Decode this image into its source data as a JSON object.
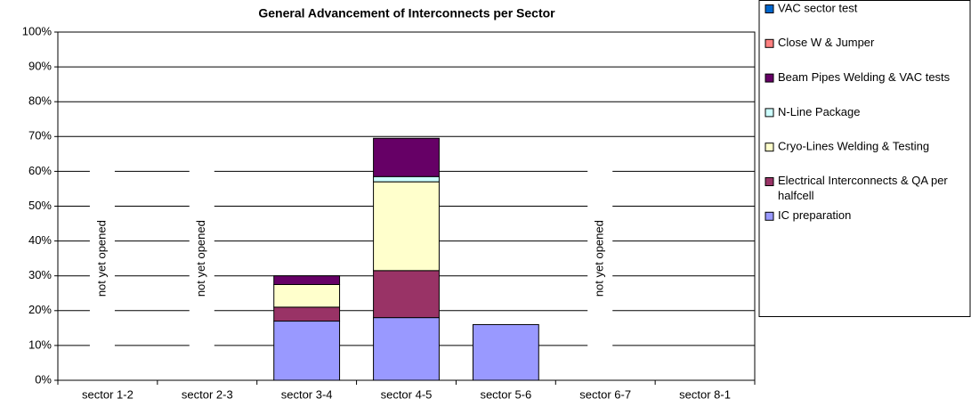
{
  "chart_data": {
    "type": "stacked_bar",
    "title": "General Advancement of Interconnects per Sector",
    "categories": [
      "sector 1-2",
      "sector 2-3",
      "sector 3-4",
      "sector 4-5",
      "sector 5-6",
      "sector 6-7",
      "sector 8-1"
    ],
    "series": [
      {
        "name": "IC preparation",
        "color": "#9999ff",
        "values": [
          0,
          0,
          17,
          18,
          16,
          0,
          0
        ]
      },
      {
        "name": "Electrical Interconnects & QA per halfcell",
        "color": "#993366",
        "values": [
          0,
          0,
          4,
          13.5,
          0,
          0,
          0
        ]
      },
      {
        "name": "Cryo-Lines Welding & Testing",
        "color": "#ffffcc",
        "values": [
          0,
          0,
          6.5,
          25.5,
          0,
          0,
          0
        ]
      },
      {
        "name": "N-Line Package",
        "color": "#ccffff",
        "values": [
          0,
          0,
          0,
          1.5,
          0,
          0,
          0
        ]
      },
      {
        "name": "Beam Pipes Welding & VAC tests",
        "color": "#660066",
        "values": [
          0,
          0,
          2.5,
          11,
          0,
          0,
          0
        ]
      },
      {
        "name": "Close W & Jumper",
        "color": "#ff8080",
        "values": [
          0,
          0,
          0,
          0,
          0,
          0,
          0
        ]
      },
      {
        "name": "VAC sector test",
        "color": "#0066cc",
        "values": [
          0,
          0,
          0,
          0,
          0,
          0,
          0
        ]
      }
    ],
    "annotations": [
      {
        "text": "not yet opened",
        "category": "sector 1-2"
      },
      {
        "text": "not yet opened",
        "category": "sector 2-3"
      },
      {
        "text": "not yet opened",
        "category": "sector 6-7"
      }
    ],
    "ylim": [
      0,
      100
    ],
    "yticks": [
      {
        "value": 0,
        "label": "0%"
      },
      {
        "value": 10,
        "label": "10%"
      },
      {
        "value": 20,
        "label": "20%"
      },
      {
        "value": 30,
        "label": "30%"
      },
      {
        "value": 40,
        "label": "40%"
      },
      {
        "value": 50,
        "label": "50%"
      },
      {
        "value": 60,
        "label": "60%"
      },
      {
        "value": 70,
        "label": "70%"
      },
      {
        "value": 80,
        "label": "80%"
      },
      {
        "value": 90,
        "label": "90%"
      },
      {
        "value": 100,
        "label": "100%"
      }
    ],
    "grid": true,
    "legend": "right"
  }
}
